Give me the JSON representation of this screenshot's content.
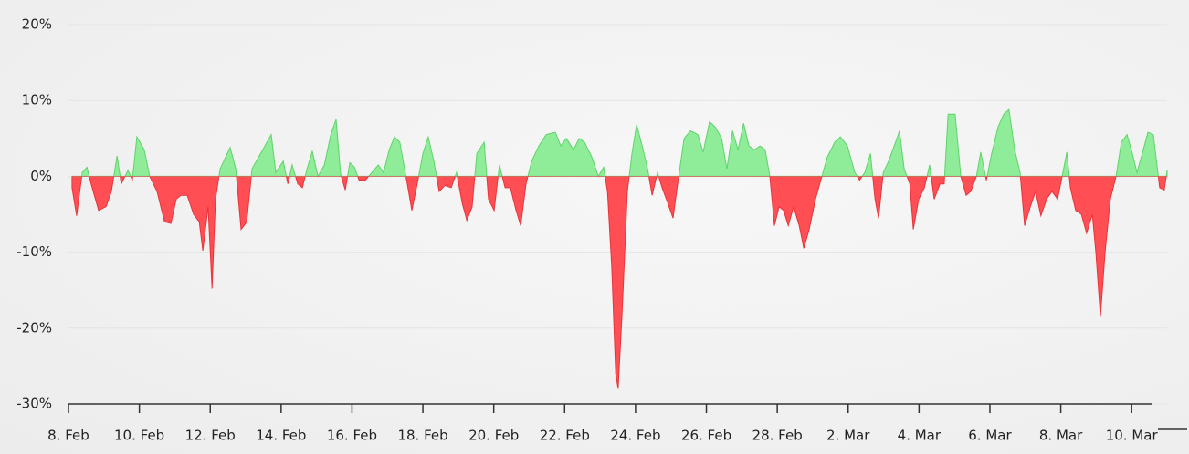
{
  "chart_data": {
    "type": "area",
    "x": [
      0.1,
      0.23,
      0.39,
      0.52,
      0.64,
      0.85,
      1.06,
      1.21,
      1.37,
      1.49,
      1.68,
      1.8,
      1.93,
      2.14,
      2.29,
      2.5,
      2.71,
      2.89,
      3.04,
      3.17,
      3.35,
      3.53,
      3.69,
      3.79,
      3.94,
      4.05,
      4.15,
      4.28,
      4.43,
      4.56,
      4.72,
      4.87,
      5.03,
      5.18,
      5.36,
      5.54,
      5.72,
      5.85,
      6.06,
      6.19,
      6.31,
      6.47,
      6.6,
      6.73,
      6.88,
      7.04,
      7.22,
      7.4,
      7.55,
      7.68,
      7.81,
      7.94,
      8.07,
      8.2,
      8.38,
      8.56,
      8.74,
      8.89,
      9.05,
      9.2,
      9.35,
      9.56,
      9.69,
      9.84,
      10.0,
      10.15,
      10.31,
      10.46,
      10.62,
      10.8,
      10.95,
      11.11,
      11.24,
      11.39,
      11.52,
      11.73,
      11.85,
      12.01,
      12.16,
      12.32,
      12.47,
      12.63,
      12.76,
      12.91,
      13.07,
      13.27,
      13.48,
      13.74,
      13.89,
      14.05,
      14.25,
      14.41,
      14.56,
      14.77,
      14.95,
      15.1,
      15.21,
      15.33,
      15.44,
      15.51,
      15.62,
      15.77,
      15.9,
      16.03,
      16.19,
      16.34,
      16.47,
      16.62,
      16.75,
      16.91,
      17.06,
      17.22,
      17.37,
      17.55,
      17.76,
      17.91,
      18.09,
      18.25,
      18.43,
      18.58,
      18.74,
      18.89,
      19.05,
      19.2,
      19.36,
      19.51,
      19.66,
      19.79,
      19.92,
      20.05,
      20.18,
      20.31,
      20.46,
      20.62,
      20.75,
      20.9,
      21.08,
      21.26,
      21.41,
      21.62,
      21.78,
      21.98,
      22.19,
      22.32,
      22.47,
      22.63,
      22.76,
      22.86,
      22.99,
      23.14,
      23.3,
      23.45,
      23.58,
      23.74,
      23.84,
      23.99,
      24.15,
      24.3,
      24.43,
      24.59,
      24.71,
      24.82,
      25.02,
      25.18,
      25.33,
      25.46,
      25.62,
      25.74,
      25.9,
      26.05,
      26.23,
      26.39,
      26.54,
      26.7,
      26.85,
      26.98,
      27.14,
      27.29,
      27.44,
      27.6,
      27.75,
      27.91,
      28.06,
      28.17,
      28.27,
      28.42,
      28.58,
      28.73,
      28.89,
      28.99,
      29.12,
      29.25,
      29.4,
      29.56,
      29.71,
      29.87,
      30.02,
      30.15,
      30.3,
      30.46,
      30.61,
      30.79,
      30.92,
      31.0
    ],
    "values": [
      -1.5,
      -5.2,
      0.5,
      1.2,
      -1,
      -4.5,
      -4,
      -2,
      2.7,
      -1,
      0.8,
      -0.5,
      5.2,
      3.5,
      0,
      -2,
      -6,
      -6.2,
      -3,
      -2.5,
      -2.5,
      -5,
      -6,
      -9.8,
      -4,
      -14.8,
      -3,
      1,
      2.5,
      3.8,
      1,
      -7,
      -6,
      1,
      2.5,
      4,
      5.5,
      0.5,
      2,
      -1,
      1.5,
      -1,
      -1.5,
      1,
      3.3,
      0,
      1.5,
      5.5,
      7.5,
      0.3,
      -1.8,
      1.8,
      1.2,
      -0.5,
      -0.5,
      0.5,
      1.5,
      0.5,
      3.5,
      5.2,
      4.5,
      -1,
      -4.5,
      -1,
      3,
      5.2,
      2,
      -2,
      -1.2,
      -1.5,
      0.5,
      -3.5,
      -5.8,
      -4,
      3,
      4.5,
      -3,
      -4.5,
      1.5,
      -1.5,
      -1.5,
      -4.5,
      -6.5,
      -1,
      2,
      4,
      5.5,
      5.8,
      4,
      5,
      3.5,
      5,
      4.5,
      2.5,
      0,
      1.2,
      -2,
      -12,
      -26,
      -28,
      -18,
      -2,
      3,
      6.8,
      4,
      1,
      -2.5,
      0.5,
      -1.5,
      -3.5,
      -5.5,
      0,
      5,
      6,
      5.5,
      3.2,
      7.2,
      6.5,
      5,
      1,
      6,
      3.5,
      7,
      4,
      3.5,
      4,
      3.5,
      0,
      -6.5,
      -4,
      -4.5,
      -6.5,
      -4,
      -6.5,
      -9.5,
      -7,
      -3,
      0,
      2.5,
      4.5,
      5.2,
      4,
      0.5,
      -0.5,
      0.5,
      3,
      -3,
      -5.5,
      0.5,
      2,
      4,
      6,
      1,
      -1,
      -7,
      -3,
      -1.5,
      1.5,
      -3,
      -1,
      -1,
      8.2,
      8.2,
      0,
      -2.5,
      -2,
      0,
      3.2,
      -0.5,
      3,
      6.5,
      8.2,
      8.8,
      3.5,
      0.5,
      -6.5,
      -4,
      -2,
      -5.2,
      -3,
      -2,
      -3,
      0.5,
      3.2,
      -1.5,
      -4.5,
      -5,
      -7.5,
      -5,
      -10,
      -18.5,
      -10,
      -3,
      0,
      4.5,
      5.5,
      3,
      0.5,
      3,
      5.8,
      5.5,
      -1.5,
      -1.8,
      0.8
    ],
    "positive_color": "#8fec98",
    "positive_line_color": "#5fd36a",
    "negative_color": "#ff4f55",
    "negative_line_color": "#e8333a",
    "xlim": [
      0,
      31
    ],
    "xticks": [
      {
        "value": 0,
        "label": "8. Feb"
      },
      {
        "value": 2,
        "label": "10. Feb"
      },
      {
        "value": 4,
        "label": "12. Feb"
      },
      {
        "value": 6,
        "label": "14. Feb"
      },
      {
        "value": 8,
        "label": "16. Feb"
      },
      {
        "value": 10,
        "label": "18. Feb"
      },
      {
        "value": 12,
        "label": "20. Feb"
      },
      {
        "value": 14,
        "label": "22. Feb"
      },
      {
        "value": 16,
        "label": "24. Feb"
      },
      {
        "value": 18,
        "label": "26. Feb"
      },
      {
        "value": 20,
        "label": "28. Feb"
      },
      {
        "value": 22,
        "label": "2. Mar"
      },
      {
        "value": 24,
        "label": "4. Mar"
      },
      {
        "value": 26,
        "label": "6. Mar"
      },
      {
        "value": 28,
        "label": "8. Mar"
      },
      {
        "value": 30,
        "label": "10. Mar"
      }
    ],
    "ylim": [
      -30,
      20
    ],
    "yticks": [
      {
        "value": 20,
        "label": "20%"
      },
      {
        "value": 10,
        "label": "10%"
      },
      {
        "value": 0,
        "label": "0%"
      },
      {
        "value": -10,
        "label": "-10%"
      },
      {
        "value": -20,
        "label": "-20%"
      },
      {
        "value": -30,
        "label": "-30%"
      }
    ],
    "grid": true
  }
}
